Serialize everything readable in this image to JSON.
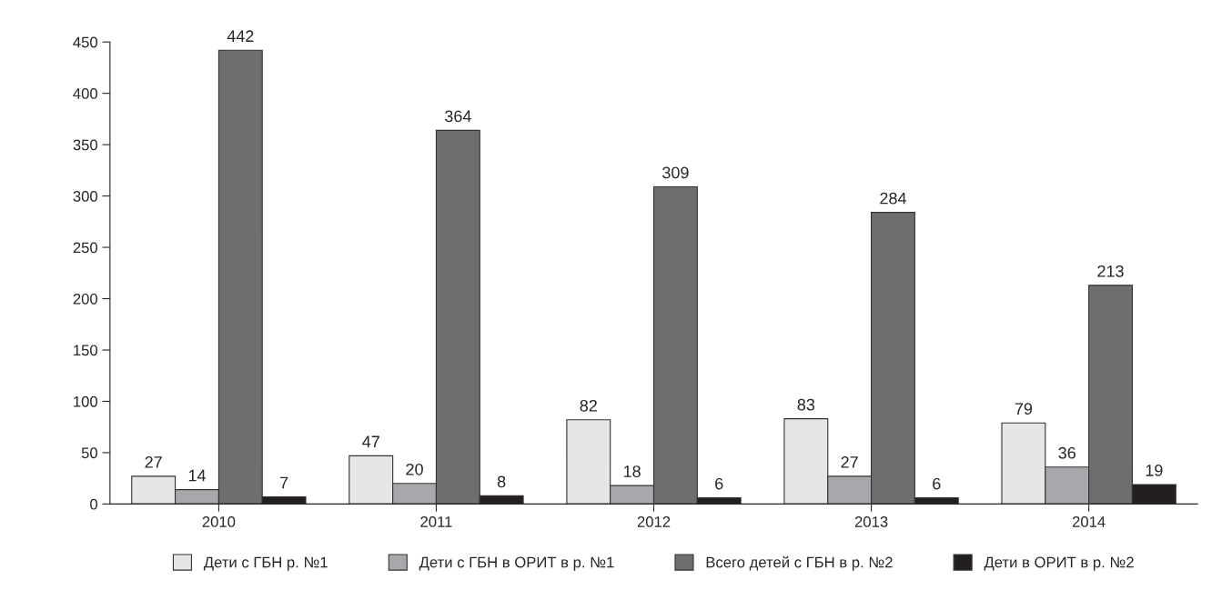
{
  "chart_data": {
    "type": "bar",
    "categories": [
      "2010",
      "2011",
      "2012",
      "2013",
      "2014"
    ],
    "series": [
      {
        "name": "Дети с ГБН р. №1",
        "color": "#e6e6e7",
        "values": [
          27,
          47,
          82,
          83,
          79
        ]
      },
      {
        "name": "Дети с ГБН в ОРИТ в р. №1",
        "color": "#a7a8ab",
        "values": [
          14,
          20,
          18,
          27,
          36
        ]
      },
      {
        "name": "Всего детей с ГБН в р. №2",
        "color": "#6d6e70",
        "values": [
          442,
          364,
          309,
          284,
          213
        ]
      },
      {
        "name": "Дети в ОРИТ в р. №2",
        "color": "#231f20",
        "values": [
          7,
          8,
          6,
          6,
          19
        ]
      }
    ],
    "ylim": [
      0,
      450
    ],
    "yticks": [
      0,
      50,
      100,
      150,
      200,
      250,
      300,
      350,
      400,
      450
    ],
    "data_labels": true,
    "grid": false,
    "legend": "bottom"
  }
}
